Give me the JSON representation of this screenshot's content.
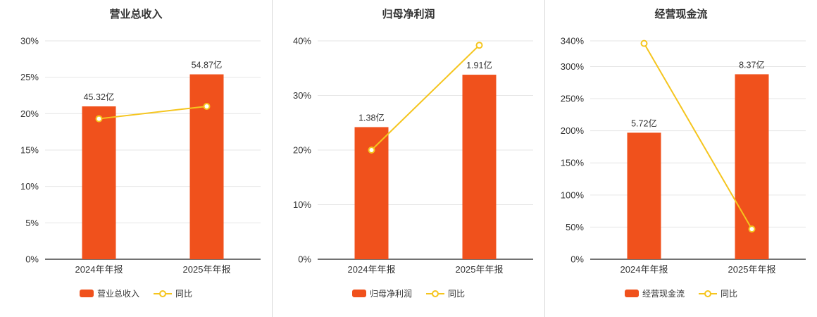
{
  "page": {
    "background": "#ffffff"
  },
  "colors": {
    "bar": "#f0511c",
    "line": "#f5c51e",
    "grid": "#e6e6e6",
    "axis": "#444444",
    "text": "#333333",
    "divider": "#d9d9d9",
    "marker_fill": "#ffffff"
  },
  "chart_data": [
    {
      "type": "bar+line",
      "title": "营业总收入",
      "categories": [
        "2024年年报",
        "2025年年报"
      ],
      "ylim": [
        0,
        30
      ],
      "y_ticks": [
        0,
        5,
        10,
        15,
        20,
        25,
        30
      ],
      "y_tick_suffix": "%",
      "grid": true,
      "legend_position": "bottom",
      "bar_series": {
        "name": "营业总收入",
        "labels": [
          "45.32亿",
          "54.87亿"
        ],
        "plot_pct": [
          21.0,
          25.4
        ]
      },
      "line_series": {
        "name": "同比",
        "plot_pct": [
          19.3,
          21.0
        ]
      }
    },
    {
      "type": "bar+line",
      "title": "归母净利润",
      "categories": [
        "2024年年报",
        "2025年年报"
      ],
      "ylim": [
        0,
        40
      ],
      "y_ticks": [
        0,
        10,
        20,
        30,
        40
      ],
      "y_tick_suffix": "%",
      "grid": true,
      "legend_position": "bottom",
      "bar_series": {
        "name": "归母净利润",
        "labels": [
          "1.38亿",
          "1.91亿"
        ],
        "plot_pct": [
          24.2,
          33.8
        ]
      },
      "line_series": {
        "name": "同比",
        "plot_pct": [
          20.0,
          39.2
        ]
      }
    },
    {
      "type": "bar+line",
      "title": "经营现金流",
      "categories": [
        "2024年年报",
        "2025年年报"
      ],
      "ylim": [
        0,
        340
      ],
      "y_ticks": [
        0,
        50,
        100,
        150,
        200,
        250,
        300,
        340
      ],
      "y_tick_suffix": "%",
      "grid": true,
      "legend_position": "bottom",
      "bar_series": {
        "name": "经营现金流",
        "labels": [
          "5.72亿",
          "8.37亿"
        ],
        "plot_pct": [
          197,
          288
        ]
      },
      "line_series": {
        "name": "同比",
        "plot_pct": [
          336,
          47
        ]
      }
    }
  ]
}
